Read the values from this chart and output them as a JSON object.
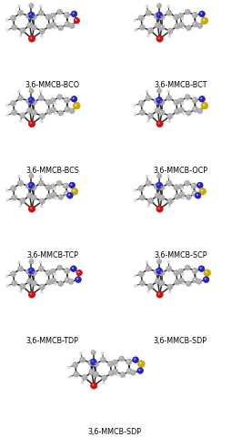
{
  "labels": [
    "3,6-MMCB-BCO",
    "3,6-MMCB-BCT",
    "3,6-MMCB-BCS",
    "3,6-MMCB-OCP",
    "3,6-MMCB-TCP",
    "3,6-MMCB-SCP",
    "3,6-MMCB-TDP",
    "3,6-MMCB-SDP",
    "3,6-MMCB-SDP"
  ],
  "bg_color": "#ffffff",
  "atom_colors": {
    "C": "#aaaaaa",
    "N": "#2020cc",
    "O": "#cc1010",
    "S": "#ccaa00",
    "H": "#d8d8d8"
  },
  "label_fontsize": 5.8,
  "label_color": "#000000"
}
